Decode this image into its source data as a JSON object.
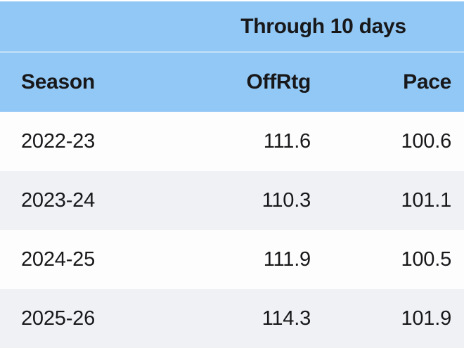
{
  "table": {
    "spanner": "Through 10 days",
    "columns": [
      "Season",
      "OffRtg",
      "Pace"
    ],
    "rows": [
      {
        "season": "2022-23",
        "offrtg": "111.6",
        "pace": "100.6"
      },
      {
        "season": "2023-24",
        "offrtg": "110.3",
        "pace": "101.1"
      },
      {
        "season": "2024-25",
        "offrtg": "111.9",
        "pace": "100.5"
      },
      {
        "season": "2025-26",
        "offrtg": "114.3",
        "pace": "101.9"
      }
    ]
  },
  "colors": {
    "header_bg": "#92C8F5",
    "header_divider": "#C5E1F9",
    "top_line": "#FFFFFF",
    "row_bg": "#FDFDFE",
    "row_alt_bg": "#EFF1F4",
    "text": "#18181A"
  },
  "chart_data": {
    "type": "table",
    "title": "Through 10 days",
    "columns": [
      "Season",
      "OffRtg",
      "Pace"
    ],
    "rows": [
      [
        "2022-23",
        111.6,
        100.6
      ],
      [
        "2023-24",
        110.3,
        101.1
      ],
      [
        "2024-25",
        111.9,
        100.5
      ],
      [
        "2025-26",
        114.3,
        101.9
      ]
    ],
    "layout_hints": {
      "header_spanner_colspan": [
        "OffRtg",
        "Pace"
      ],
      "numeric_alignment": "right",
      "zebra_striping": true
    }
  }
}
